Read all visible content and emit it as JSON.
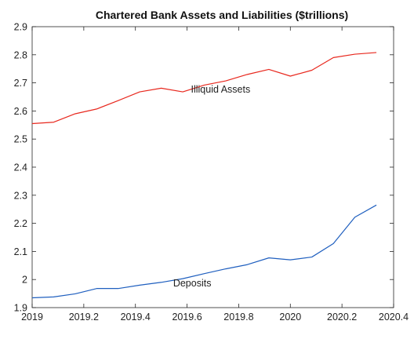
{
  "chart_data": {
    "type": "line",
    "title": "Chartered Bank Assets and Liabilities ($trillions)",
    "xlabel": "",
    "ylabel": "",
    "xlim": [
      2019,
      2020.4
    ],
    "ylim": [
      1.9,
      2.9
    ],
    "x_ticks": [
      2019,
      2019.2,
      2019.4,
      2019.6,
      2019.8,
      2020,
      2020.2,
      2020.4
    ],
    "x_tick_labels": [
      "2019",
      "2019.2",
      "2019.4",
      "2019.6",
      "2019.8",
      "2020",
      "2020.2",
      "2020.4"
    ],
    "y_ticks": [
      1.9,
      2.0,
      2.1,
      2.2,
      2.3,
      2.4,
      2.5,
      2.6,
      2.7,
      2.8,
      2.9
    ],
    "y_tick_labels": [
      "1.9",
      "2",
      "2.1",
      "2.2",
      "2.3",
      "2.4",
      "2.5",
      "2.6",
      "2.7",
      "2.8",
      "2.9"
    ],
    "grid": false,
    "x": [
      2019.0,
      2019.0833,
      2019.1667,
      2019.25,
      2019.3333,
      2019.4167,
      2019.5,
      2019.5833,
      2019.6667,
      2019.75,
      2019.8333,
      2019.9167,
      2020.0,
      2020.0833,
      2020.1667,
      2020.25,
      2020.3333
    ],
    "series": [
      {
        "name": "Illiquid Assets",
        "color": "#e8281e",
        "values": [
          2.555,
          2.56,
          2.59,
          2.607,
          2.637,
          2.668,
          2.681,
          2.668,
          2.692,
          2.707,
          2.73,
          2.748,
          2.724,
          2.745,
          2.79,
          2.802,
          2.808
        ]
      },
      {
        "name": "Deposits",
        "color": "#1f5fbf",
        "values": [
          1.935,
          1.938,
          1.949,
          1.968,
          1.968,
          1.98,
          1.99,
          2.003,
          2.021,
          2.038,
          2.053,
          2.077,
          2.07,
          2.08,
          2.128,
          2.222,
          2.265
        ]
      }
    ],
    "annotations": [
      {
        "text": "Illiquid Assets",
        "x": 2019.73,
        "y": 2.665
      },
      {
        "text": "Deposits",
        "x": 2019.62,
        "y": 1.975
      }
    ]
  }
}
